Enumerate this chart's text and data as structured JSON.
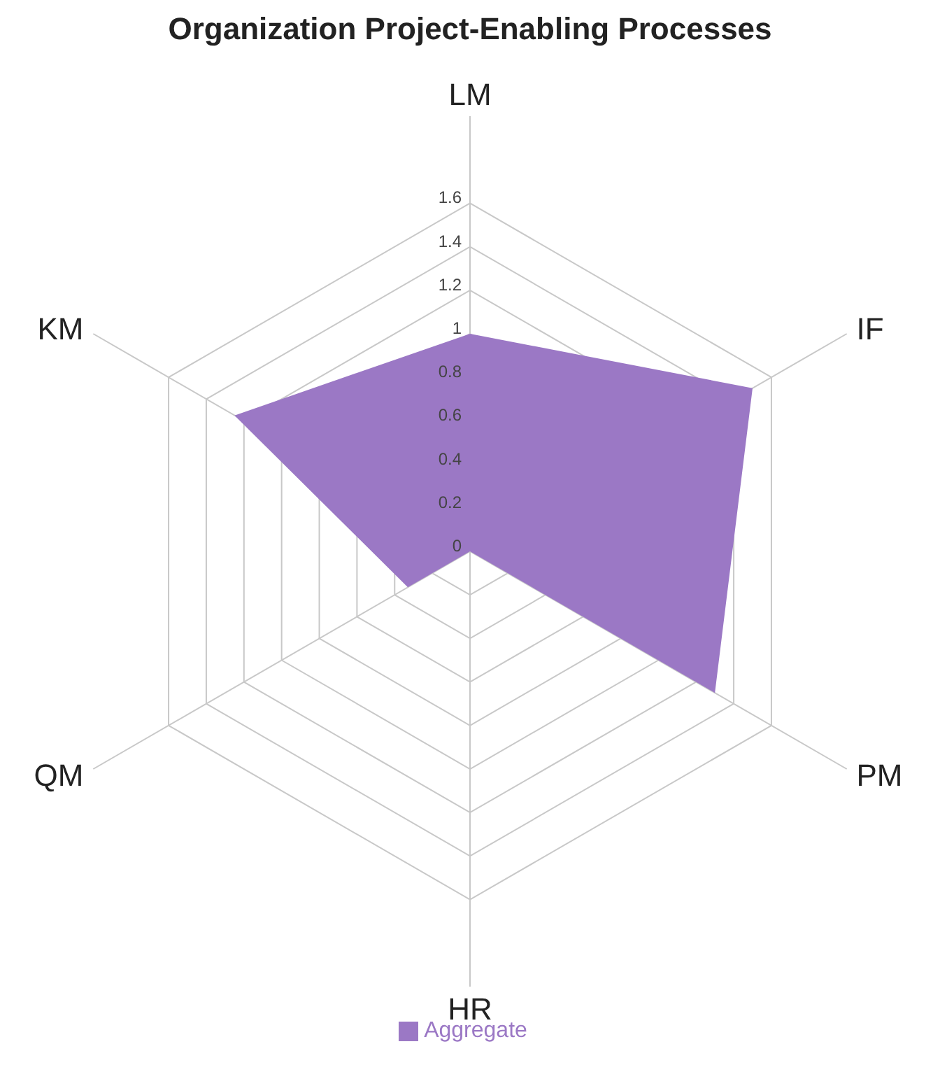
{
  "chart_data": {
    "type": "radar",
    "title": "Organization Project-Enabling Processes",
    "categories": [
      "LM",
      "IF",
      "PM",
      "HR",
      "QM",
      "KM"
    ],
    "series": [
      {
        "name": "Aggregate",
        "color": "#9b78c5",
        "values": [
          1.0,
          1.5,
          1.3,
          0,
          0.33,
          1.25
        ]
      }
    ],
    "ylim": [
      0,
      1.6
    ],
    "yticks": [
      0,
      0.2,
      0.4,
      0.6,
      0.8,
      1,
      1.2,
      1.4,
      1.6
    ],
    "grid": true,
    "legend": "bottom"
  }
}
